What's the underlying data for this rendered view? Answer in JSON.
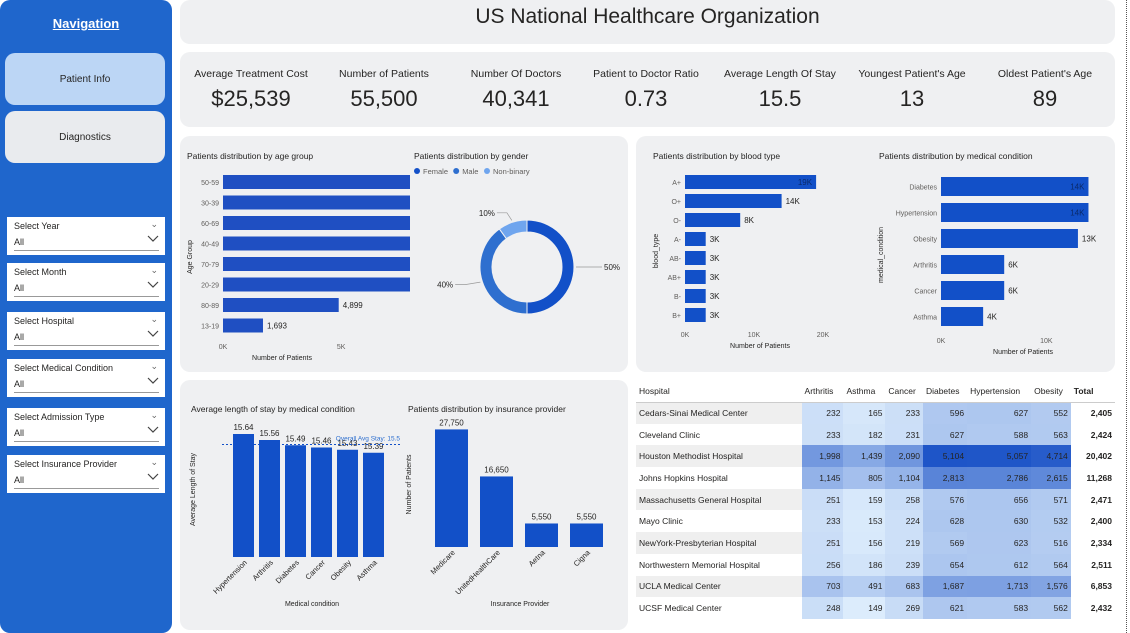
{
  "nav": {
    "title": "Navigation",
    "buttons": [
      "Patient Info",
      "Diagnostics"
    ]
  },
  "slicers": [
    {
      "label": "Select Year",
      "value": "All"
    },
    {
      "label": "Select Month",
      "value": "All"
    },
    {
      "label": "Select Hospital",
      "value": "All"
    },
    {
      "label": "Select Medical Condition",
      "value": "All"
    },
    {
      "label": "Select Admission Type",
      "value": "All"
    },
    {
      "label": "Select Insurance Provider",
      "value": "All"
    }
  ],
  "header": {
    "title": "US National Healthcare Organization"
  },
  "kpis": [
    {
      "label": "Average Treatment Cost",
      "value": "$25,539"
    },
    {
      "label": "Number of Patients",
      "value": "55,500"
    },
    {
      "label": "Number Of Doctors",
      "value": "40,341"
    },
    {
      "label": "Patient to Doctor Ratio",
      "value": "0.73"
    },
    {
      "label": "Average Length Of Stay",
      "value": "15.5"
    },
    {
      "label": "Youngest Patient's Age",
      "value": "13"
    },
    {
      "label": "Oldest Patient's Age",
      "value": "89"
    }
  ],
  "chart_titles": {
    "age": "Patients distribution by age group",
    "gender": "Patients distribution by gender",
    "blood": "Patients distribution by blood type",
    "condition": "Patients distribution by medical condition",
    "stay": "Average length of stay by medical condition",
    "insurance": "Patients distribution by insurance provider"
  },
  "chart_data": [
    {
      "type": "bar",
      "orientation": "horizontal",
      "title": "Patients distribution by age group",
      "categories": [
        "50-59",
        "30-39",
        "60-69",
        "40-49",
        "70-79",
        "20-29",
        "80-89",
        "13-19"
      ],
      "values": [
        8350,
        8179,
        8177,
        8130,
        8072,
        8000,
        4899,
        1693
      ],
      "labels": [
        "8,350",
        "8,179",
        "8,177",
        "8,130",
        "8,072",
        "8,000",
        "4,899",
        "1,693"
      ],
      "xlabel": "Number of Patients",
      "ylabel": "Age Group",
      "xticks": [
        "0K",
        "5K"
      ],
      "xlim": [
        0,
        10500
      ],
      "color": "#1f4fc2"
    },
    {
      "type": "pie",
      "title": "Patients distribution by gender",
      "legend": [
        "Female",
        "Male",
        "Non-binary"
      ],
      "values": [
        50,
        40,
        10
      ],
      "labels": [
        "50%",
        "40%",
        "10%"
      ],
      "colors": [
        "#1250c8",
        "#2e6fcf",
        "#6fa5ee"
      ],
      "legend_position": "top-left"
    },
    {
      "type": "bar",
      "orientation": "horizontal",
      "title": "Patients distribution by blood type",
      "categories": [
        "A+",
        "O+",
        "O-",
        "A-",
        "AB-",
        "AB+",
        "B-",
        "B+"
      ],
      "values": [
        19000,
        14000,
        8000,
        3000,
        3000,
        3000,
        3000,
        3000
      ],
      "labels": [
        "19K",
        "14K",
        "8K",
        "3K",
        "3K",
        "3K",
        "3K",
        "3K"
      ],
      "xlabel": "Number of Patients",
      "ylabel": "blood_type",
      "xticks": [
        "0K",
        "10K",
        "20K"
      ],
      "xlim": [
        0,
        20000
      ],
      "color": "#1250c8"
    },
    {
      "type": "bar",
      "orientation": "horizontal",
      "title": "Patients distribution by medical condition",
      "categories": [
        "Diabetes",
        "Hypertension",
        "Obesity",
        "Arthritis",
        "Cancer",
        "Asthma"
      ],
      "values": [
        14000,
        14000,
        13000,
        6000,
        6000,
        4000
      ],
      "labels": [
        "14K",
        "14K",
        "13K",
        "6K",
        "6K",
        "4K"
      ],
      "xlabel": "Number of Patients",
      "ylabel": "medical_condition",
      "xticks": [
        "0K",
        "10K"
      ],
      "xlim": [
        0,
        15000
      ],
      "color": "#1250c8"
    },
    {
      "type": "bar",
      "title": "Average length of stay by medical condition",
      "categories": [
        "Hypertension",
        "Arthritis",
        "Diabetes",
        "Cancer",
        "Obesity",
        "Asthma"
      ],
      "values": [
        15.64,
        15.56,
        15.49,
        15.46,
        15.43,
        15.39
      ],
      "labels": [
        "15.64",
        "15.56",
        "15.49",
        "15.46",
        "15.43",
        "15.39"
      ],
      "xlabel": "Medical condition",
      "ylabel": "Average Length of Stay",
      "ylim": [
        14.0,
        15.8
      ],
      "reference_line": {
        "label": "Overall Avg Stay: 15.5",
        "value": 15.5
      },
      "color": "#1250c8"
    },
    {
      "type": "bar",
      "title": "Patients distribution by insurance provider",
      "categories": [
        "Medicare",
        "UnitedHealthCare",
        "Aetna",
        "Cigna"
      ],
      "values": [
        27750,
        16650,
        5550,
        5550
      ],
      "labels": [
        "27,750",
        "16,650",
        "5,550",
        "5,550"
      ],
      "xlabel": "Insurance Provider",
      "ylabel": "Number of Patients",
      "ylim": [
        0,
        29500
      ],
      "color": "#1250c8"
    },
    {
      "type": "table",
      "columns": [
        "Hospital",
        "Arthritis",
        "Asthma",
        "Cancer",
        "Diabetes",
        "Hypertension",
        "Obesity",
        "Total"
      ],
      "rows": [
        [
          "Cedars-Sinai Medical Center",
          "232",
          "165",
          "233",
          "596",
          "627",
          "552",
          "2,405"
        ],
        [
          "Cleveland Clinic",
          "233",
          "182",
          "231",
          "627",
          "588",
          "563",
          "2,424"
        ],
        [
          "Houston Methodist Hospital",
          "1,998",
          "1,439",
          "2,090",
          "5,104",
          "5,057",
          "4,714",
          "20,402"
        ],
        [
          "Johns Hopkins Hospital",
          "1,145",
          "805",
          "1,104",
          "2,813",
          "2,786",
          "2,615",
          "11,268"
        ],
        [
          "Massachusetts General Hospital",
          "251",
          "159",
          "258",
          "576",
          "656",
          "571",
          "2,471"
        ],
        [
          "Mayo Clinic",
          "233",
          "153",
          "224",
          "628",
          "630",
          "532",
          "2,400"
        ],
        [
          "NewYork-Presbyterian Hospital",
          "251",
          "156",
          "219",
          "569",
          "623",
          "516",
          "2,334"
        ],
        [
          "Northwestern Memorial Hospital",
          "256",
          "186",
          "239",
          "654",
          "612",
          "564",
          "2,511"
        ],
        [
          "UCLA Medical Center",
          "703",
          "491",
          "683",
          "1,687",
          "1,713",
          "1,576",
          "6,853"
        ],
        [
          "UCSF Medical Center",
          "248",
          "149",
          "269",
          "621",
          "583",
          "562",
          "2,432"
        ]
      ]
    }
  ]
}
